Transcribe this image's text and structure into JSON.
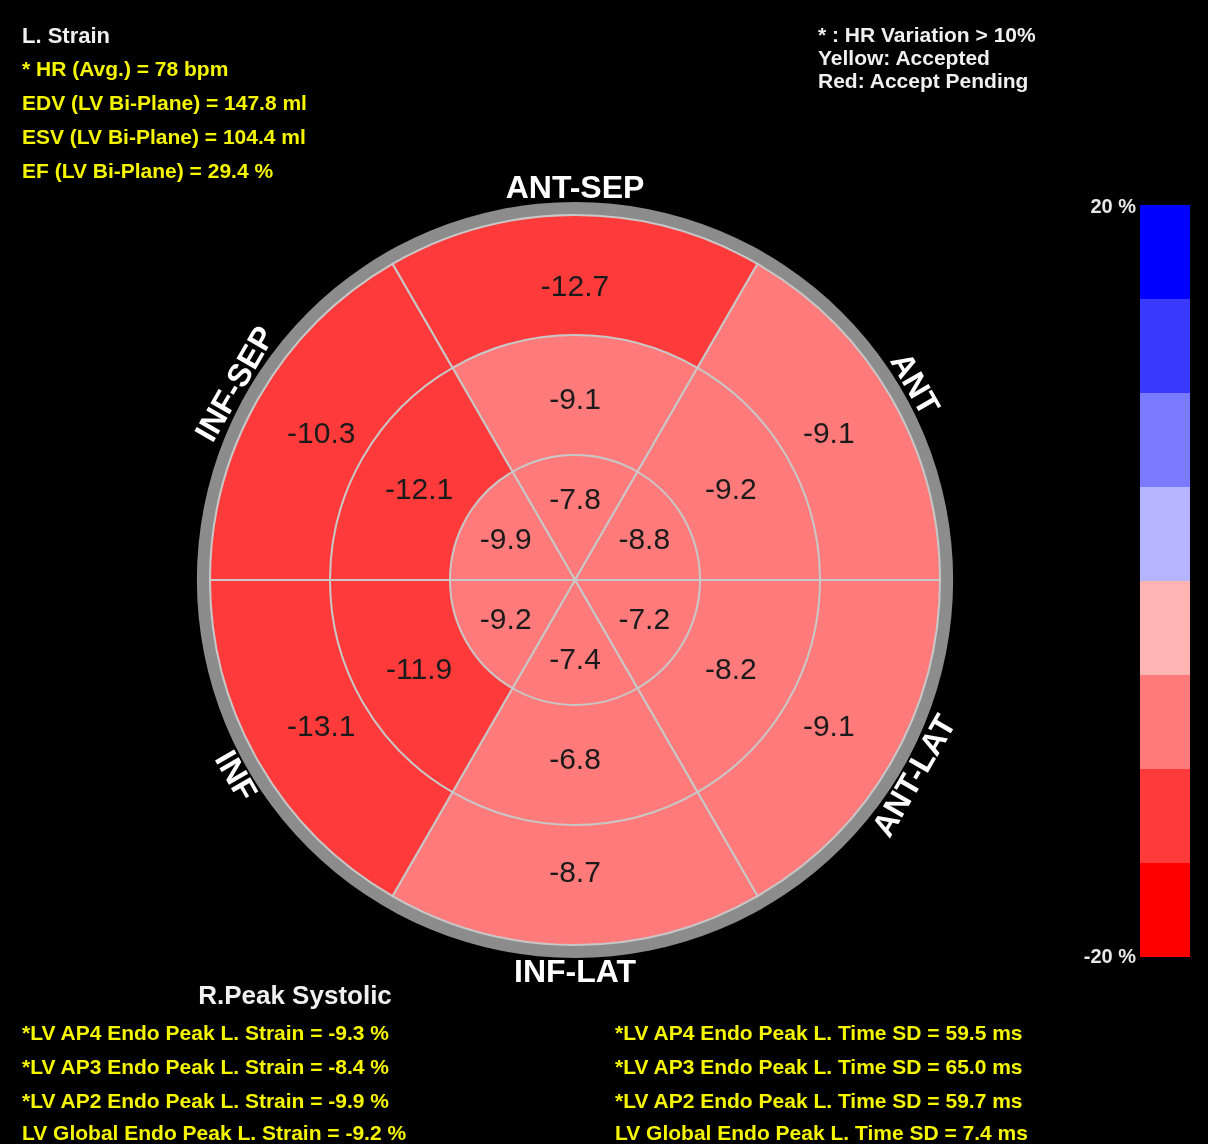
{
  "chart_data": {
    "type": "other",
    "title": "L. Strain",
    "categories": [
      "ANT-SEP",
      "ANT",
      "ANT-LAT",
      "INF-LAT",
      "INF",
      "INF-SEP"
    ],
    "series": [
      {
        "values": [
          -12.7,
          -9.1,
          -9.1,
          -8.7,
          -13.1,
          -10.3
        ],
        "colors": [
          "#ff3a3a",
          "#ff7a7a",
          "#ff7a7a",
          "#ff7a7a",
          "#ff3a3a",
          "#ff3a3a"
        ]
      },
      {
        "values": [
          -9.1,
          -9.2,
          -8.2,
          -6.8,
          -11.9,
          -12.1
        ],
        "colors": [
          "#ff7a7a",
          "#ff7a7a",
          "#ff7a7a",
          "#ff7a7a",
          "#ff3a3a",
          "#ff3a3a"
        ]
      },
      {
        "values": [
          -7.8,
          -8.8,
          -7.2,
          -7.4,
          -9.2,
          -9.9
        ],
        "color": "#ff7a7a"
      }
    ],
    "colors": [
      "#ff0000",
      "#ff3a3a",
      "#ff7a7a",
      "#ffb4b4",
      "#b4b4ff",
      "#7a7aff",
      "#3a3aff",
      "#0000ff"
    ],
    "data_labels": true,
    "annotations": [
      "* HR (Avg.) = 78 bpm",
      "EDV (LV Bi-Plane) = 147.8 ml",
      "ESV (LV Bi-Plane) = 104.4 ml",
      "EF (LV Bi-Plane) = 29.4 %",
      "* :       HR Variation > 10%",
      "Yellow: Accepted",
      "Red:     Accept Pending",
      "R.Peak Systolic",
      "*LV AP4 Endo Peak L. Strain = -9.3 %",
      "*LV AP3 Endo Peak L. Strain = -8.4 %",
      "*LV AP2 Endo Peak L. Strain = -9.9 %",
      "LV Global Endo Peak L. Strain = -9.2 %",
      "*LV AP4 Endo Peak L. Time SD = 59.5 ms",
      "*LV AP3 Endo Peak L. Time SD = 65.0 ms",
      "*LV AP2 Endo Peak L. Time SD = 59.7 ms",
      "LV Global Endo Peak L. Time SD = 7.4 ms",
      "20 %",
      "-20 %"
    ]
  }
}
